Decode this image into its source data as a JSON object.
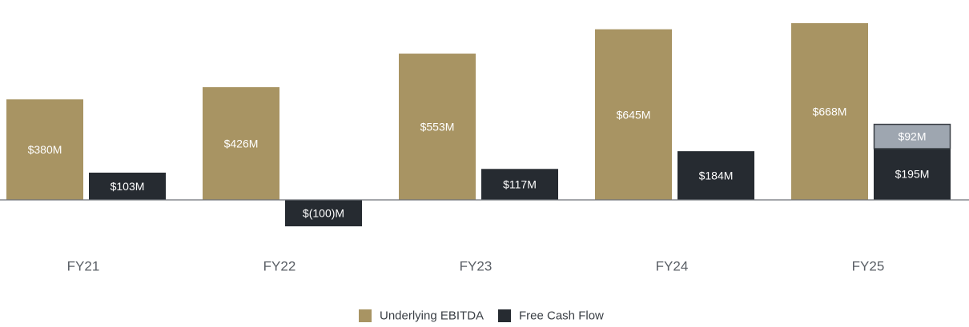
{
  "chart_data": {
    "type": "bar",
    "categories": [
      "FY21",
      "FY22",
      "FY23",
      "FY24",
      "FY25"
    ],
    "series": [
      {
        "name": "Underlying EBITDA",
        "values": [
          380,
          426,
          553,
          645,
          668
        ],
        "labels": [
          "$380M",
          "$426M",
          "$553M",
          "$645M",
          "$668M"
        ],
        "color": "#A89463"
      },
      {
        "name": "Free Cash Flow",
        "values": [
          103,
          -100,
          117,
          184,
          195
        ],
        "labels": [
          "$103M",
          "$(100)M",
          "$117M",
          "$184M",
          "$195M"
        ],
        "color": "#262B31"
      }
    ],
    "stacked_segment": {
      "category": "FY25",
      "series": "Free Cash Flow",
      "value": 92,
      "label": "$92M",
      "color": "#9EA6B0"
    },
    "legend": {
      "placement": "bottom-center",
      "entries": [
        "Underlying EBITDA",
        "Free Cash Flow"
      ]
    },
    "grid": false,
    "ylim": [
      -190,
      700
    ],
    "title": "",
    "xlabel": "",
    "ylabel": ""
  }
}
